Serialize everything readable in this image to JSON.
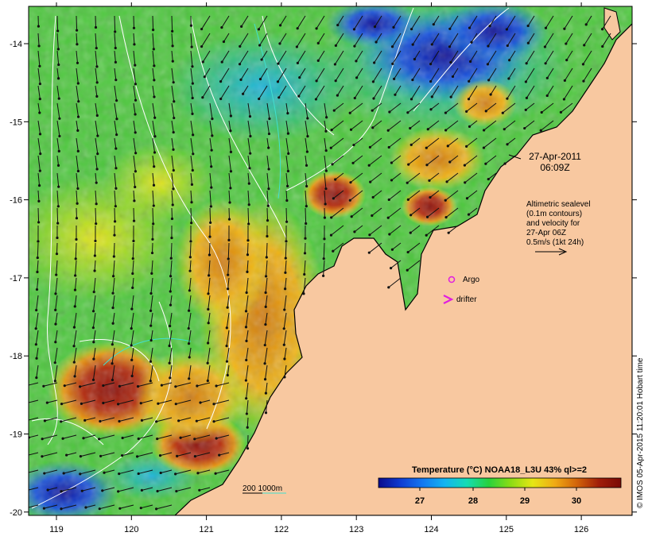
{
  "map": {
    "lon_ticks": [
      "119",
      "120",
      "121",
      "122",
      "123",
      "124",
      "125",
      "126"
    ],
    "lat_ticks": [
      "-14",
      "-15",
      "-16",
      "-17",
      "-18",
      "-19",
      "-20"
    ],
    "land_color": "#f8c8a0",
    "timestamp_date": "27-Apr-2011",
    "timestamp_time": "06:09Z",
    "altimetry_notes": [
      "Altimetric sealevel",
      "(0.1m contours)",
      "and velocity for",
      "27-Apr 06Z",
      "0.5m/s (1kt 24h)"
    ],
    "argo_label": "Argo",
    "drifter_label": "drifter",
    "isobath_label": "200  1000m",
    "colorbar_title": "Temperature (°C) NOAA18_L3U 43% ql>=2",
    "colorbar_ticks": [
      "27",
      "28",
      "29",
      "30"
    ],
    "colorbar_colors": [
      "#0a0a8c",
      "#0f3cd2",
      "#1478f0",
      "#14b4f0",
      "#14dcb4",
      "#28d23c",
      "#8cdc14",
      "#e6e614",
      "#f0aa14",
      "#d2640a",
      "#a01e0a",
      "#7a0a05"
    ],
    "credit": "© IMOS 05-Apr-2015 11:20:01 Hobart time",
    "argo_color": "#e01ee0",
    "drifter_color": "#e01ee0"
  }
}
